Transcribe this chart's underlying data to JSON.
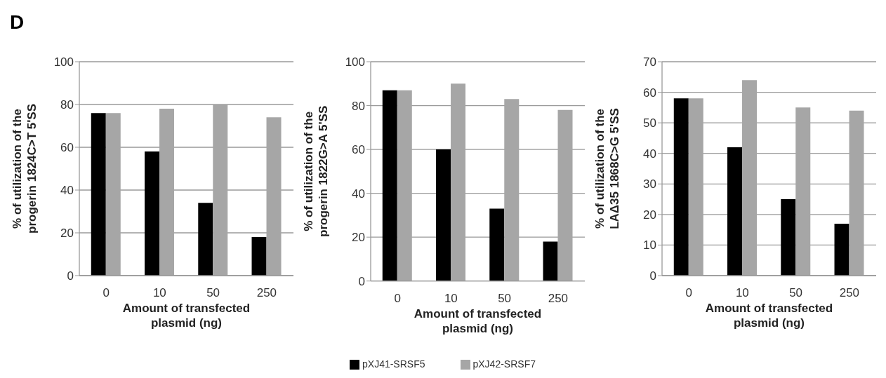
{
  "chart_data": [
    {
      "type": "bar",
      "ylabel": "% of utilization of the progerin 1824C>T 5'SS",
      "xlabel": "Amount of transfected plasmid (ng)",
      "categories": [
        "0",
        "10",
        "50",
        "250"
      ],
      "annotations": [
        "D"
      ],
      "series": [
        {
          "color": "#000000",
          "values": [
            76,
            58,
            34,
            18
          ]
        },
        {
          "color": "#a6a6a6",
          "values": [
            76,
            78,
            80,
            74
          ]
        }
      ],
      "ylim": [
        0,
        100
      ],
      "yticks": [
        0,
        20,
        40,
        60,
        80,
        100
      ],
      "grid": "y"
    },
    {
      "type": "bar",
      "ylabel": "% of utilization of the progerin 1822G>A 5'SS",
      "xlabel": "Amount of transfected plasmid (ng)",
      "categories": [
        "0",
        "10",
        "50",
        "250"
      ],
      "series": [
        {
          "name": "pXJ41-SRSF5",
          "color": "#000000",
          "values": [
            87,
            60,
            33,
            18
          ]
        },
        {
          "name": "pXJ42-SRSF7",
          "color": "#a6a6a6",
          "values": [
            87,
            90,
            83,
            78
          ]
        }
      ],
      "ylim": [
        0,
        100
      ],
      "yticks": [
        0,
        20,
        40,
        60,
        80,
        100
      ],
      "grid": "y",
      "legend": "bottom"
    },
    {
      "type": "bar",
      "ylabel": "% of utilization of the LAΔ35 1868C>G 5'SS",
      "xlabel": "Amount of transfected plasmid (ng)",
      "categories": [
        "0",
        "10",
        "50",
        "250"
      ],
      "series": [
        {
          "color": "#000000",
          "values": [
            58,
            42,
            25,
            17
          ]
        },
        {
          "color": "#a6a6a6",
          "values": [
            58,
            64,
            55,
            54
          ]
        }
      ],
      "ylim": [
        0,
        70
      ],
      "yticks": [
        0,
        10,
        20,
        30,
        40,
        50,
        60,
        70
      ],
      "grid": "y"
    }
  ]
}
